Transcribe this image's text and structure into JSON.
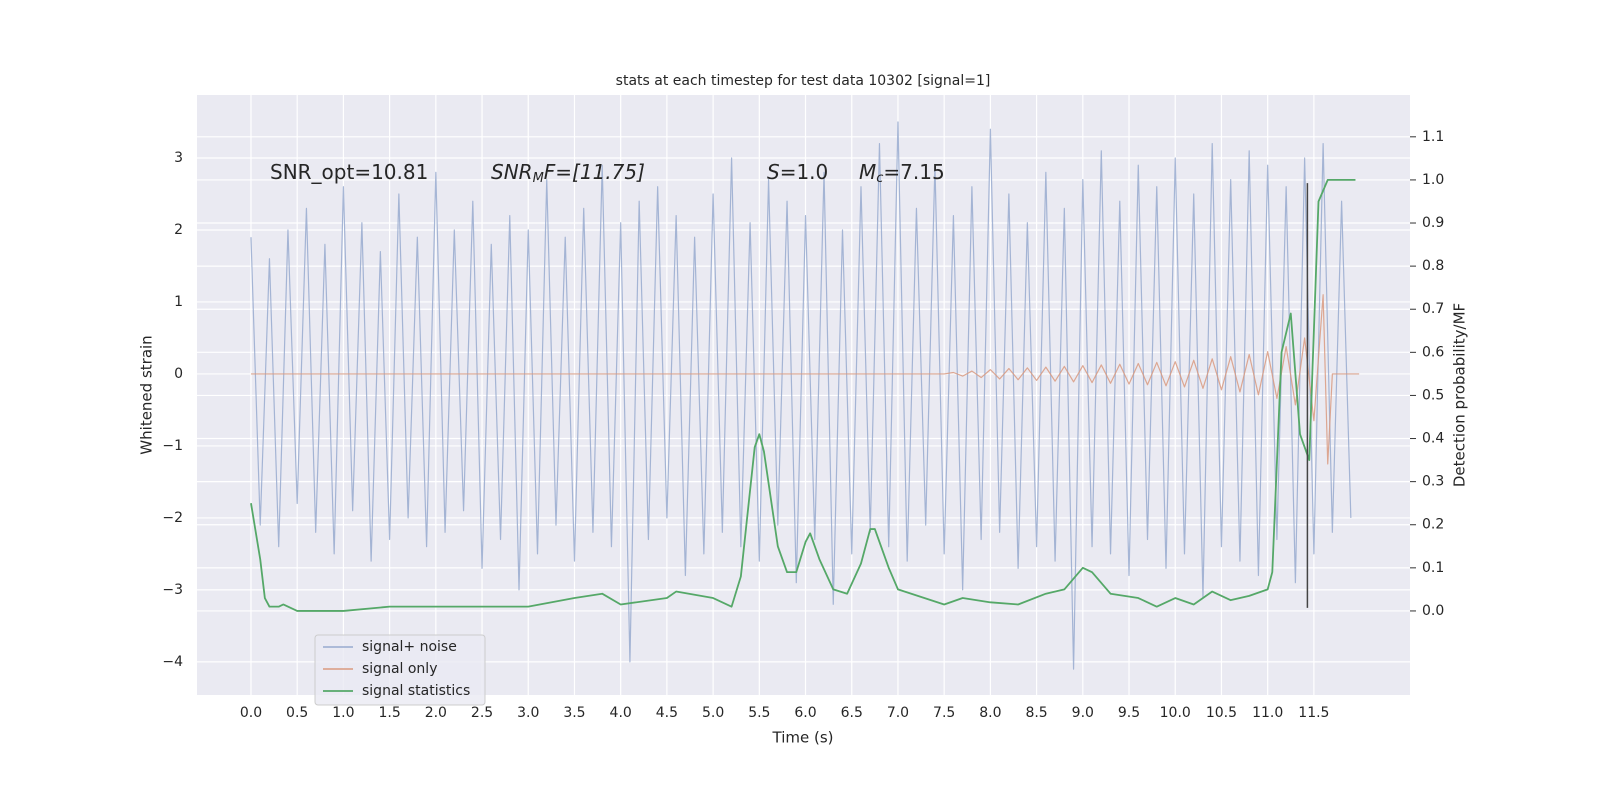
{
  "chart_data": {
    "type": "line",
    "title": "stats at each timestep for test data 10302 [signal=1]",
    "x_label": "Time (s)",
    "y_label": "Whitened strain",
    "y2_label": "Detection probability/MF",
    "xlim": [
      -0.584,
      12.54
    ],
    "ylim": [
      -4.46,
      3.875
    ],
    "y2lim": [
      -0.195,
      1.197
    ],
    "xticks": [
      {
        "value": 0,
        "label": "0.0"
      },
      0.5,
      {
        "value": 1,
        "label": "1.0"
      },
      1.5,
      {
        "value": 2,
        "label": "2.0"
      },
      2.5,
      {
        "value": 3,
        "label": "3.0"
      },
      3.5,
      {
        "value": 4,
        "label": "4.0"
      },
      4.5,
      {
        "value": 5,
        "label": "5.0"
      },
      5.5,
      {
        "value": 6,
        "label": "6.0"
      },
      6.5,
      {
        "value": 7,
        "label": "7.0"
      },
      7.5,
      {
        "value": 8,
        "label": "8.0"
      },
      8.5,
      {
        "value": 9,
        "label": "9.0"
      },
      9.5,
      {
        "value": 10,
        "label": "10.0"
      },
      10.5,
      {
        "value": 11,
        "label": "11.0"
      },
      11.5
    ],
    "yticks": [
      {
        "value": -4,
        "label": "−4"
      },
      {
        "value": -3,
        "label": "−3"
      },
      {
        "value": -2,
        "label": "−2"
      },
      {
        "value": -1,
        "label": "−1"
      },
      0,
      1,
      2,
      3
    ],
    "y2ticks": [
      {
        "value": 0,
        "label": "0.0"
      },
      0.1,
      0.2,
      0.3,
      0.4,
      0.5,
      0.6,
      0.7,
      0.8,
      0.9,
      {
        "value": 1,
        "label": "1.0"
      },
      1.1
    ],
    "grid": true,
    "legend": "lower left",
    "annotations": [
      {
        "main": "SNR_opt=10.81"
      },
      {
        "main": "SNR",
        "sub": "M",
        "rest": "F=[11.75]"
      },
      {
        "main": "S",
        "rest": "=1.0"
      },
      {
        "main": "M",
        "sub": "c",
        "rest": "=7.15"
      }
    ],
    "vline": {
      "x": 11.43,
      "ymin": -3.25,
      "ymax": 2.65,
      "color": "#444444"
    },
    "series": [
      {
        "name": "signal+ noise",
        "color": "#98aacf",
        "x": [
          0.0,
          0.1,
          0.2,
          0.3,
          0.4,
          0.5,
          0.6,
          0.7,
          0.8,
          0.9,
          1.0,
          1.1,
          1.2,
          1.3,
          1.4,
          1.5,
          1.6,
          1.7,
          1.8,
          1.9,
          2.0,
          2.1,
          2.2,
          2.3,
          2.4,
          2.5,
          2.6,
          2.7,
          2.8,
          2.9,
          3.0,
          3.1,
          3.2,
          3.3,
          3.4,
          3.5,
          3.6,
          3.7,
          3.8,
          3.9,
          4.0,
          4.1,
          4.2,
          4.3,
          4.4,
          4.5,
          4.6,
          4.7,
          4.8,
          4.9,
          5.0,
          5.1,
          5.2,
          5.3,
          5.4,
          5.5,
          5.6,
          5.7,
          5.8,
          5.9,
          6.0,
          6.1,
          6.2,
          6.3,
          6.4,
          6.5,
          6.6,
          6.7,
          6.8,
          6.9,
          7.0,
          7.1,
          7.2,
          7.3,
          7.4,
          7.5,
          7.6,
          7.7,
          7.8,
          7.9,
          8.0,
          8.1,
          8.2,
          8.3,
          8.4,
          8.5,
          8.6,
          8.7,
          8.8,
          8.9,
          9.0,
          9.1,
          9.2,
          9.3,
          9.4,
          9.5,
          9.6,
          9.7,
          9.8,
          9.9,
          10.0,
          10.1,
          10.2,
          10.3,
          10.4,
          10.5,
          10.6,
          10.7,
          10.8,
          10.9,
          11.0,
          11.1,
          11.2,
          11.3,
          11.4,
          11.5,
          11.6,
          11.7,
          11.8,
          11.9
        ],
        "values": [
          1.9,
          -2.1,
          1.6,
          -2.4,
          2.0,
          -1.8,
          2.3,
          -2.2,
          1.8,
          -2.5,
          2.6,
          -1.9,
          2.1,
          -2.6,
          1.7,
          -2.3,
          2.5,
          -2.0,
          1.9,
          -2.4,
          2.8,
          -2.2,
          2.0,
          -1.9,
          2.4,
          -2.7,
          1.8,
          -2.3,
          2.2,
          -3.0,
          2.0,
          -2.5,
          2.7,
          -2.1,
          1.9,
          -2.6,
          2.3,
          -2.2,
          2.9,
          -2.4,
          2.1,
          -4.0,
          2.4,
          -2.3,
          2.6,
          -2.0,
          2.2,
          -2.8,
          1.9,
          -2.5,
          2.5,
          -2.2,
          3.0,
          -2.4,
          2.1,
          -2.6,
          2.7,
          -2.1,
          2.4,
          -2.9,
          2.2,
          -2.3,
          2.8,
          -3.2,
          2.0,
          -2.5,
          2.6,
          -2.2,
          3.2,
          -2.4,
          3.5,
          -2.6,
          2.3,
          -2.1,
          2.9,
          -2.5,
          2.2,
          -3.0,
          2.6,
          -2.3,
          3.4,
          -2.2,
          2.5,
          -2.7,
          2.1,
          -2.4,
          2.8,
          -2.6,
          2.3,
          -4.1,
          2.7,
          -2.4,
          3.1,
          -2.5,
          2.4,
          -2.8,
          2.9,
          -2.3,
          2.6,
          -2.7,
          3.0,
          -2.5,
          2.5,
          -3.1,
          3.2,
          -2.4,
          2.7,
          -2.6,
          3.1,
          -2.8,
          2.9,
          -2.3,
          2.6,
          -2.9,
          3.0,
          -2.5,
          3.2,
          -2.2,
          2.4,
          -2.0
        ]
      },
      {
        "name": "signal only",
        "color": "#d99a80",
        "x": [
          0,
          7.5,
          7.6,
          7.7,
          7.8,
          7.9,
          8.0,
          8.1,
          8.2,
          8.3,
          8.4,
          8.5,
          8.6,
          8.7,
          8.8,
          8.9,
          9.0,
          9.1,
          9.2,
          9.3,
          9.4,
          9.5,
          9.6,
          9.7,
          9.8,
          9.9,
          10.0,
          10.1,
          10.2,
          10.3,
          10.4,
          10.5,
          10.6,
          10.7,
          10.8,
          10.9,
          11.0,
          11.1,
          11.2,
          11.3,
          11.4,
          11.5,
          11.6,
          11.65,
          11.7,
          11.99
        ],
        "values": [
          0,
          0,
          0.02,
          -0.03,
          0.04,
          -0.05,
          0.06,
          -0.07,
          0.075,
          -0.08,
          0.085,
          -0.09,
          0.095,
          -0.1,
          0.105,
          -0.11,
          0.115,
          -0.12,
          0.125,
          -0.13,
          0.135,
          -0.14,
          0.145,
          -0.15,
          0.16,
          -0.165,
          0.17,
          -0.18,
          0.19,
          -0.2,
          0.21,
          -0.22,
          0.24,
          -0.25,
          0.27,
          -0.29,
          0.31,
          -0.34,
          0.38,
          -0.43,
          0.5,
          -0.65,
          1.1,
          -1.25,
          0,
          0
        ]
      },
      {
        "name": "signal statistics",
        "color": "#55a868",
        "axis": "y2",
        "x": [
          0,
          0.1,
          0.15,
          0.2,
          0.3,
          0.35,
          0.5,
          1.0,
          1.5,
          2.0,
          2.5,
          3.0,
          3.5,
          3.8,
          4.0,
          4.5,
          4.6,
          5.0,
          5.2,
          5.3,
          5.45,
          5.5,
          5.55,
          5.7,
          5.8,
          5.9,
          6.0,
          6.05,
          6.15,
          6.3,
          6.45,
          6.6,
          6.7,
          6.75,
          6.9,
          7.0,
          7.5,
          7.7,
          8.0,
          8.3,
          8.6,
          8.8,
          9.0,
          9.1,
          9.3,
          9.6,
          9.8,
          10.0,
          10.2,
          10.4,
          10.6,
          10.8,
          11.0,
          11.05,
          11.15,
          11.25,
          11.35,
          11.45,
          11.55,
          11.65,
          11.95
        ],
        "values": [
          0.25,
          0.12,
          0.03,
          0.01,
          0.01,
          0.015,
          0.0,
          0.0,
          0.01,
          0.01,
          0.01,
          0.01,
          0.03,
          0.04,
          0.015,
          0.03,
          0.045,
          0.03,
          0.01,
          0.08,
          0.38,
          0.41,
          0.37,
          0.15,
          0.09,
          0.09,
          0.16,
          0.18,
          0.12,
          0.05,
          0.04,
          0.11,
          0.19,
          0.19,
          0.1,
          0.05,
          0.015,
          0.03,
          0.02,
          0.015,
          0.04,
          0.05,
          0.1,
          0.09,
          0.04,
          0.03,
          0.01,
          0.03,
          0.015,
          0.045,
          0.025,
          0.035,
          0.05,
          0.09,
          0.6,
          0.69,
          0.41,
          0.35,
          0.95,
          1.0,
          1.0
        ]
      }
    ]
  }
}
